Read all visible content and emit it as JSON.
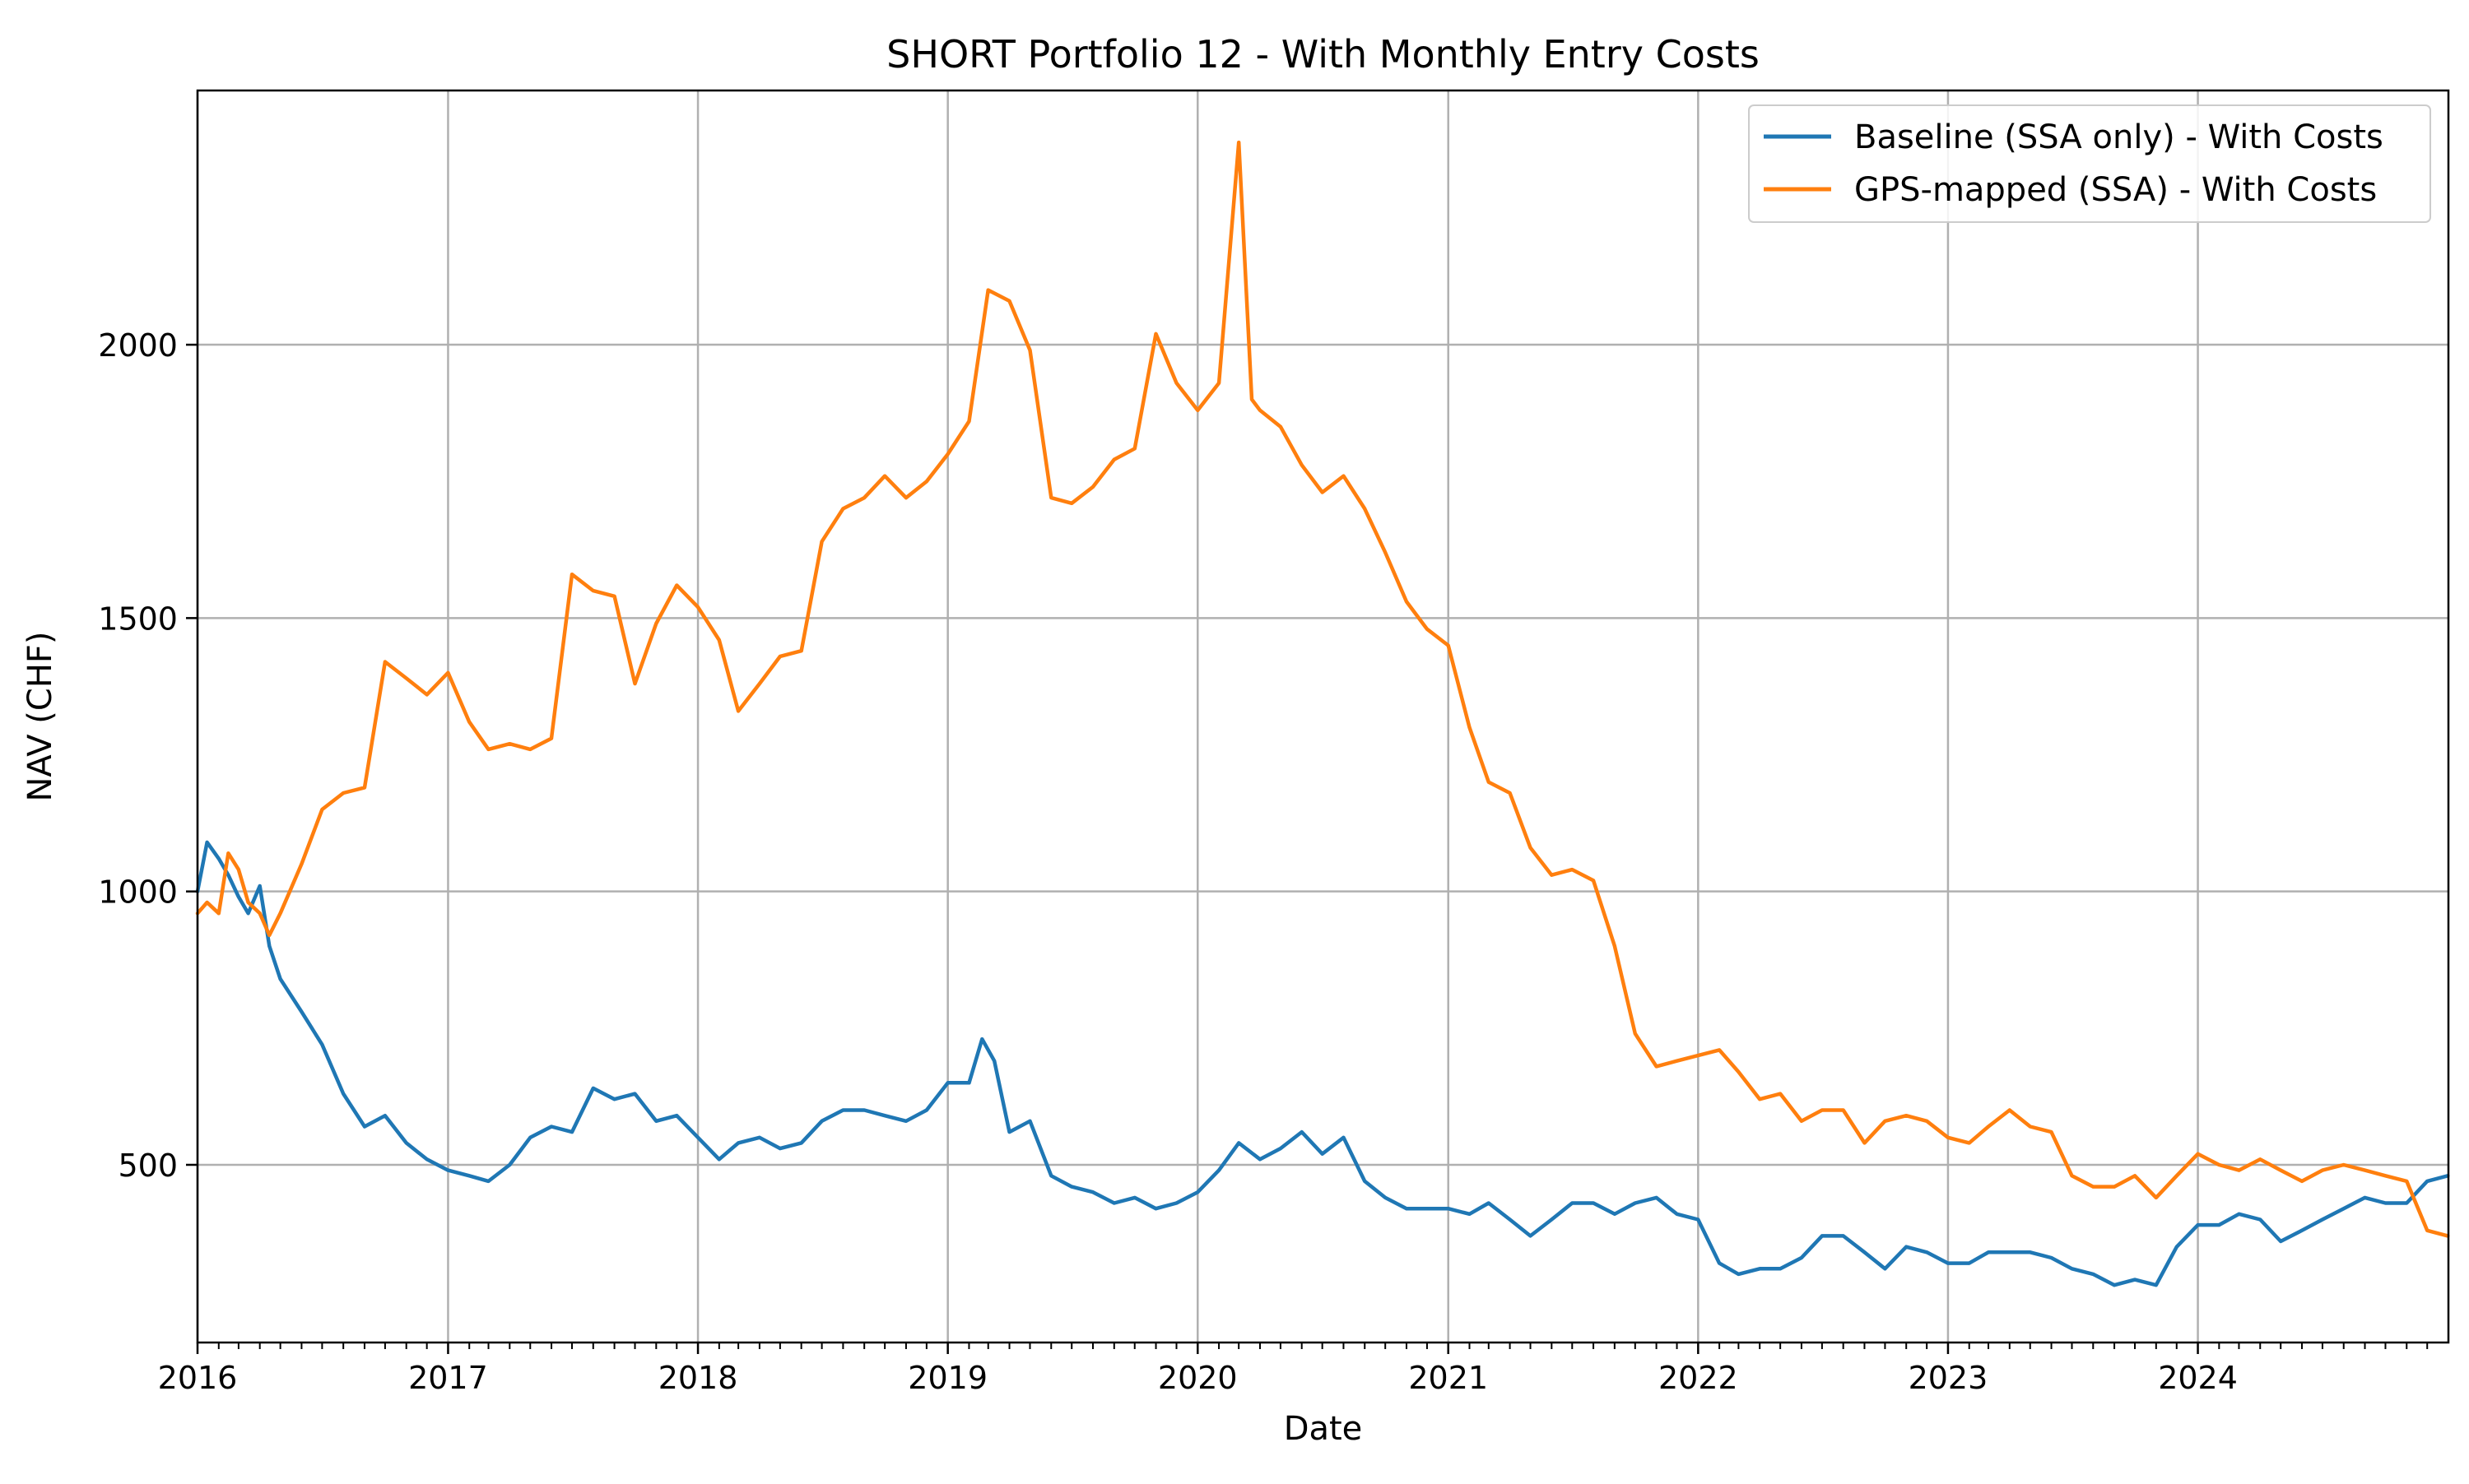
{
  "chart_data": {
    "type": "line",
    "title": "SHORT Portfolio 12 - With Monthly Entry Costs",
    "xlabel": "Date",
    "ylabel": "NAV (CHF)",
    "x_ticks": [
      "2016",
      "2017",
      "2018",
      "2019",
      "2020",
      "2021",
      "2022",
      "2023",
      "2024"
    ],
    "y_ticks": [
      500,
      1000,
      1500,
      2000
    ],
    "xlim": [
      "2016-01-01",
      "2024-12-31"
    ],
    "ylim": [
      175,
      2465
    ],
    "grid": true,
    "legend_position": "upper right",
    "series": [
      {
        "name": "Baseline (SSA only) - With Costs",
        "color": "#1f77b4",
        "points": [
          [
            "2016-01-01",
            1000
          ],
          [
            "2016-01-15",
            1090
          ],
          [
            "2016-02-01",
            1060
          ],
          [
            "2016-02-15",
            1030
          ],
          [
            "2016-03-01",
            990
          ],
          [
            "2016-03-15",
            960
          ],
          [
            "2016-04-01",
            1010
          ],
          [
            "2016-04-15",
            900
          ],
          [
            "2016-05-01",
            840
          ],
          [
            "2016-06-01",
            780
          ],
          [
            "2016-07-01",
            720
          ],
          [
            "2016-08-01",
            630
          ],
          [
            "2016-09-01",
            570
          ],
          [
            "2016-10-01",
            590
          ],
          [
            "2016-11-01",
            540
          ],
          [
            "2016-12-01",
            510
          ],
          [
            "2017-01-01",
            490
          ],
          [
            "2017-02-01",
            480
          ],
          [
            "2017-03-01",
            470
          ],
          [
            "2017-04-01",
            500
          ],
          [
            "2017-05-01",
            550
          ],
          [
            "2017-06-01",
            570
          ],
          [
            "2017-07-01",
            560
          ],
          [
            "2017-08-01",
            640
          ],
          [
            "2017-09-01",
            620
          ],
          [
            "2017-10-01",
            630
          ],
          [
            "2017-11-01",
            580
          ],
          [
            "2017-12-01",
            590
          ],
          [
            "2018-01-01",
            550
          ],
          [
            "2018-02-01",
            510
          ],
          [
            "2018-03-01",
            540
          ],
          [
            "2018-04-01",
            550
          ],
          [
            "2018-05-01",
            530
          ],
          [
            "2018-06-01",
            540
          ],
          [
            "2018-07-01",
            580
          ],
          [
            "2018-08-01",
            600
          ],
          [
            "2018-09-01",
            600
          ],
          [
            "2018-10-01",
            590
          ],
          [
            "2018-11-01",
            580
          ],
          [
            "2018-12-01",
            600
          ],
          [
            "2019-01-01",
            650
          ],
          [
            "2019-02-01",
            650
          ],
          [
            "2019-02-20",
            730
          ],
          [
            "2019-03-10",
            690
          ],
          [
            "2019-04-01",
            560
          ],
          [
            "2019-05-01",
            580
          ],
          [
            "2019-06-01",
            480
          ],
          [
            "2019-07-01",
            460
          ],
          [
            "2019-08-01",
            450
          ],
          [
            "2019-09-01",
            430
          ],
          [
            "2019-10-01",
            440
          ],
          [
            "2019-11-01",
            420
          ],
          [
            "2019-12-01",
            430
          ],
          [
            "2020-01-01",
            450
          ],
          [
            "2020-02-01",
            490
          ],
          [
            "2020-03-01",
            540
          ],
          [
            "2020-04-01",
            510
          ],
          [
            "2020-05-01",
            530
          ],
          [
            "2020-06-01",
            560
          ],
          [
            "2020-07-01",
            520
          ],
          [
            "2020-08-01",
            550
          ],
          [
            "2020-09-01",
            470
          ],
          [
            "2020-10-01",
            440
          ],
          [
            "2020-11-01",
            420
          ],
          [
            "2020-12-01",
            420
          ],
          [
            "2021-01-01",
            420
          ],
          [
            "2021-02-01",
            410
          ],
          [
            "2021-03-01",
            430
          ],
          [
            "2021-04-01",
            400
          ],
          [
            "2021-05-01",
            370
          ],
          [
            "2021-06-01",
            400
          ],
          [
            "2021-07-01",
            430
          ],
          [
            "2021-08-01",
            430
          ],
          [
            "2021-09-01",
            410
          ],
          [
            "2021-10-01",
            430
          ],
          [
            "2021-11-01",
            440
          ],
          [
            "2021-12-01",
            410
          ],
          [
            "2022-01-01",
            400
          ],
          [
            "2022-02-01",
            320
          ],
          [
            "2022-03-01",
            300
          ],
          [
            "2022-04-01",
            310
          ],
          [
            "2022-05-01",
            310
          ],
          [
            "2022-06-01",
            330
          ],
          [
            "2022-07-01",
            370
          ],
          [
            "2022-08-01",
            370
          ],
          [
            "2022-09-01",
            340
          ],
          [
            "2022-10-01",
            310
          ],
          [
            "2022-11-01",
            350
          ],
          [
            "2022-12-01",
            340
          ],
          [
            "2023-01-01",
            320
          ],
          [
            "2023-02-01",
            320
          ],
          [
            "2023-03-01",
            340
          ],
          [
            "2023-04-01",
            340
          ],
          [
            "2023-05-01",
            340
          ],
          [
            "2023-06-01",
            330
          ],
          [
            "2023-07-01",
            310
          ],
          [
            "2023-08-01",
            300
          ],
          [
            "2023-09-01",
            280
          ],
          [
            "2023-10-01",
            290
          ],
          [
            "2023-11-01",
            280
          ],
          [
            "2023-12-01",
            350
          ],
          [
            "2024-01-01",
            390
          ],
          [
            "2024-02-01",
            390
          ],
          [
            "2024-03-01",
            410
          ],
          [
            "2024-04-01",
            400
          ],
          [
            "2024-05-01",
            360
          ],
          [
            "2024-06-01",
            380
          ],
          [
            "2024-07-01",
            400
          ],
          [
            "2024-08-01",
            420
          ],
          [
            "2024-09-01",
            440
          ],
          [
            "2024-10-01",
            430
          ],
          [
            "2024-11-01",
            430
          ],
          [
            "2024-12-01",
            470
          ],
          [
            "2024-12-31",
            480
          ]
        ]
      },
      {
        "name": "GPS-mapped (SSA) - With Costs",
        "color": "#ff7f0e",
        "points": [
          [
            "2016-01-01",
            960
          ],
          [
            "2016-01-15",
            980
          ],
          [
            "2016-02-01",
            960
          ],
          [
            "2016-02-15",
            1070
          ],
          [
            "2016-03-01",
            1040
          ],
          [
            "2016-03-15",
            980
          ],
          [
            "2016-04-01",
            960
          ],
          [
            "2016-04-15",
            920
          ],
          [
            "2016-05-01",
            960
          ],
          [
            "2016-06-01",
            1050
          ],
          [
            "2016-07-01",
            1150
          ],
          [
            "2016-08-01",
            1180
          ],
          [
            "2016-09-01",
            1190
          ],
          [
            "2016-10-01",
            1420
          ],
          [
            "2016-11-01",
            1390
          ],
          [
            "2016-12-01",
            1360
          ],
          [
            "2017-01-01",
            1400
          ],
          [
            "2017-02-01",
            1310
          ],
          [
            "2017-03-01",
            1260
          ],
          [
            "2017-04-01",
            1270
          ],
          [
            "2017-05-01",
            1260
          ],
          [
            "2017-06-01",
            1280
          ],
          [
            "2017-07-01",
            1580
          ],
          [
            "2017-08-01",
            1550
          ],
          [
            "2017-09-01",
            1540
          ],
          [
            "2017-10-01",
            1380
          ],
          [
            "2017-11-01",
            1490
          ],
          [
            "2017-12-01",
            1560
          ],
          [
            "2018-01-01",
            1520
          ],
          [
            "2018-02-01",
            1460
          ],
          [
            "2018-03-01",
            1330
          ],
          [
            "2018-04-01",
            1380
          ],
          [
            "2018-05-01",
            1430
          ],
          [
            "2018-06-01",
            1440
          ],
          [
            "2018-07-01",
            1640
          ],
          [
            "2018-08-01",
            1700
          ],
          [
            "2018-09-01",
            1720
          ],
          [
            "2018-10-01",
            1760
          ],
          [
            "2018-11-01",
            1720
          ],
          [
            "2018-12-01",
            1750
          ],
          [
            "2019-01-01",
            1800
          ],
          [
            "2019-02-01",
            1860
          ],
          [
            "2019-03-01",
            2100
          ],
          [
            "2019-04-01",
            2080
          ],
          [
            "2019-05-01",
            1990
          ],
          [
            "2019-06-01",
            1720
          ],
          [
            "2019-07-01",
            1710
          ],
          [
            "2019-08-01",
            1740
          ],
          [
            "2019-09-01",
            1790
          ],
          [
            "2019-10-01",
            1810
          ],
          [
            "2019-11-01",
            2020
          ],
          [
            "2019-12-01",
            1930
          ],
          [
            "2020-01-01",
            1880
          ],
          [
            "2020-02-01",
            1930
          ],
          [
            "2020-03-01",
            2370
          ],
          [
            "2020-03-20",
            1900
          ],
          [
            "2020-04-01",
            1880
          ],
          [
            "2020-05-01",
            1850
          ],
          [
            "2020-06-01",
            1780
          ],
          [
            "2020-07-01",
            1730
          ],
          [
            "2020-08-01",
            1760
          ],
          [
            "2020-09-01",
            1700
          ],
          [
            "2020-10-01",
            1620
          ],
          [
            "2020-11-01",
            1530
          ],
          [
            "2020-12-01",
            1480
          ],
          [
            "2021-01-01",
            1450
          ],
          [
            "2021-02-01",
            1300
          ],
          [
            "2021-03-01",
            1200
          ],
          [
            "2021-04-01",
            1180
          ],
          [
            "2021-05-01",
            1080
          ],
          [
            "2021-06-01",
            1030
          ],
          [
            "2021-07-01",
            1040
          ],
          [
            "2021-08-01",
            1020
          ],
          [
            "2021-09-01",
            900
          ],
          [
            "2021-10-01",
            740
          ],
          [
            "2021-11-01",
            680
          ],
          [
            "2021-12-01",
            690
          ],
          [
            "2022-01-01",
            700
          ],
          [
            "2022-02-01",
            710
          ],
          [
            "2022-03-01",
            670
          ],
          [
            "2022-04-01",
            620
          ],
          [
            "2022-05-01",
            630
          ],
          [
            "2022-06-01",
            580
          ],
          [
            "2022-07-01",
            600
          ],
          [
            "2022-08-01",
            600
          ],
          [
            "2022-09-01",
            540
          ],
          [
            "2022-10-01",
            580
          ],
          [
            "2022-11-01",
            590
          ],
          [
            "2022-12-01",
            580
          ],
          [
            "2023-01-01",
            550
          ],
          [
            "2023-02-01",
            540
          ],
          [
            "2023-03-01",
            570
          ],
          [
            "2023-04-01",
            600
          ],
          [
            "2023-05-01",
            570
          ],
          [
            "2023-06-01",
            560
          ],
          [
            "2023-07-01",
            480
          ],
          [
            "2023-08-01",
            460
          ],
          [
            "2023-09-01",
            460
          ],
          [
            "2023-10-01",
            480
          ],
          [
            "2023-11-01",
            440
          ],
          [
            "2023-12-01",
            480
          ],
          [
            "2024-01-01",
            520
          ],
          [
            "2024-02-01",
            500
          ],
          [
            "2024-03-01",
            490
          ],
          [
            "2024-04-01",
            510
          ],
          [
            "2024-05-01",
            490
          ],
          [
            "2024-06-01",
            470
          ],
          [
            "2024-07-01",
            490
          ],
          [
            "2024-08-01",
            500
          ],
          [
            "2024-09-01",
            490
          ],
          [
            "2024-10-01",
            480
          ],
          [
            "2024-11-01",
            470
          ],
          [
            "2024-12-01",
            380
          ],
          [
            "2024-12-31",
            370
          ]
        ]
      }
    ]
  }
}
